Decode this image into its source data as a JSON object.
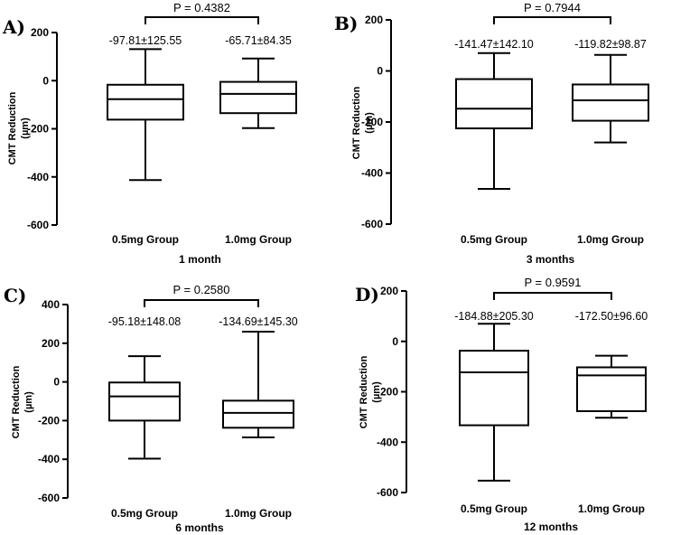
{
  "chart_data": [
    {
      "type": "box",
      "panel": "A)",
      "xlabel": "1 month",
      "ylabel": "CMT Reduction (µm)",
      "ylabel_lines": [
        "CMT Reduction",
        "(µm)"
      ],
      "ylim": [
        -600,
        200
      ],
      "yticks": [
        200,
        0,
        -200,
        -400,
        -600
      ],
      "categories": [
        "0.5mg Group",
        "1.0mg Group"
      ],
      "boxes": [
        {
          "min": -413,
          "q1": -162,
          "median": -77,
          "q3": -17,
          "max": 131,
          "label": "-97.81±125.55"
        },
        {
          "min": -197,
          "q1": -135,
          "median": -55,
          "q3": -5,
          "max": 92,
          "label": "-65.71±84.35"
        }
      ],
      "pvalue": "P = 0.4382"
    },
    {
      "type": "box",
      "panel": "B)",
      "xlabel": "3 months",
      "ylabel": "CMT Reduction (µm)",
      "ylabel_lines": [
        "CMT Reduction",
        "(µm)"
      ],
      "ylim": [
        -600,
        200
      ],
      "yticks": [
        200,
        0,
        -200,
        -400,
        -600
      ],
      "categories": [
        "0.5mg Group",
        "1.0mg Group"
      ],
      "boxes": [
        {
          "min": -462,
          "q1": -225,
          "median": -148,
          "q3": -32,
          "max": 70,
          "label": "-141.47±142.10"
        },
        {
          "min": -280,
          "q1": -195,
          "median": -115,
          "q3": -53,
          "max": 63,
          "label": "-119.82±98.87"
        }
      ],
      "pvalue": "P = 0.7944"
    },
    {
      "type": "box",
      "panel": "C)",
      "xlabel": "6 months",
      "ylabel": "CMT Reduction (µm)",
      "ylabel_lines": [
        "CMT Reduction",
        "(µm)"
      ],
      "ylim": [
        -600,
        400
      ],
      "yticks": [
        400,
        200,
        0,
        -200,
        -400,
        -600
      ],
      "categories": [
        "0.5mg Group",
        "1.0mg Group"
      ],
      "boxes": [
        {
          "min": -397,
          "q1": -200,
          "median": -75,
          "q3": -3,
          "max": 133,
          "label": "-95.18±148.08"
        },
        {
          "min": -287,
          "q1": -237,
          "median": -160,
          "q3": -97,
          "max": 260,
          "label": "-134.69±145.30"
        }
      ],
      "pvalue": "P = 0.2580"
    },
    {
      "type": "box",
      "panel": "D)",
      "xlabel": "12 months",
      "ylabel": "CMT Reduction (µm)",
      "ylabel_lines": [
        "CMT Reduction",
        "(µm)"
      ],
      "ylim": [
        -600,
        200
      ],
      "yticks": [
        200,
        0,
        -200,
        -400,
        -600
      ],
      "categories": [
        "0.5mg Group",
        "1.0mg Group"
      ],
      "boxes": [
        {
          "min": -553,
          "q1": -333,
          "median": -123,
          "q3": -37,
          "max": 70,
          "label": "-184.88±205.30"
        },
        {
          "min": -303,
          "q1": -277,
          "median": -135,
          "q3": -103,
          "max": -57,
          "label": "-172.50±96.60"
        }
      ],
      "pvalue": "P = 0.9591"
    }
  ]
}
